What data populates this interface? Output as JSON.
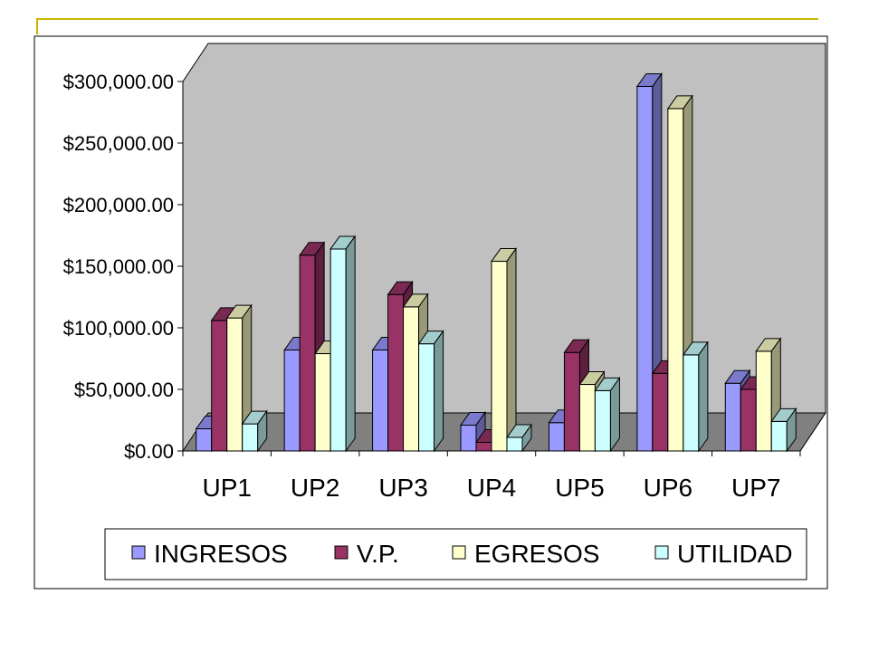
{
  "chart_data": {
    "type": "bar",
    "style": "3d-clustered-column",
    "categories": [
      "UP1",
      "UP2",
      "UP3",
      "UP4",
      "UP5",
      "UP6",
      "UP7"
    ],
    "series": [
      {
        "name": "INGRESOS",
        "color": "#9999ff",
        "values": [
          18000,
          82000,
          82000,
          21000,
          23000,
          296000,
          55000
        ]
      },
      {
        "name": "V.P.",
        "color": "#993366",
        "values": [
          106000,
          159000,
          127000,
          7000,
          80000,
          63000,
          50000
        ]
      },
      {
        "name": "EGRESOS",
        "color": "#ffffcc",
        "values": [
          108000,
          79000,
          117000,
          154000,
          54000,
          278000,
          81000
        ]
      },
      {
        "name": "UTILIDAD",
        "color": "#ccffff",
        "values": [
          22000,
          164000,
          87000,
          11000,
          49000,
          78000,
          24000
        ]
      }
    ],
    "y_ticks": [
      "$0.00",
      "$50,000.00",
      "$100,000.00",
      "$150,000.00",
      "$200,000.00",
      "$250,000.00",
      "$300,000.00"
    ],
    "ylim": [
      0,
      300000
    ],
    "grid": false,
    "legend_position": "bottom",
    "wall_color": "#c0c0c0",
    "floor_color": "#808080"
  }
}
